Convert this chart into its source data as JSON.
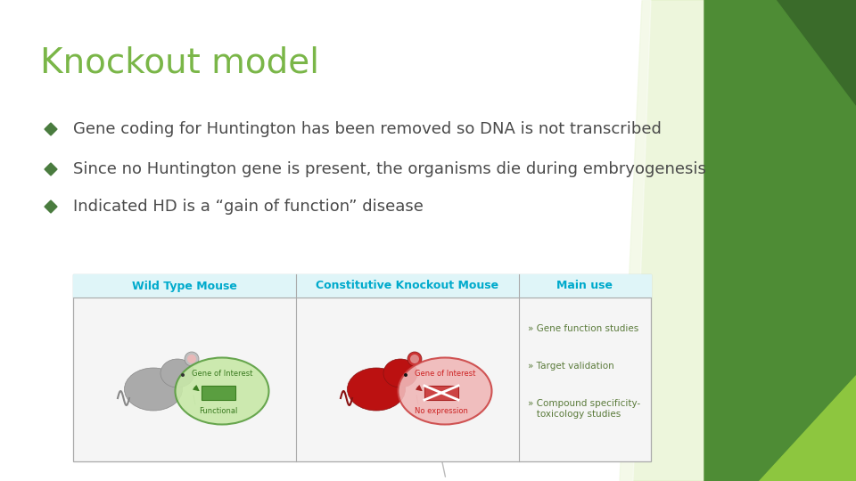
{
  "title": "Knockout model",
  "title_color": "#7ab648",
  "title_fontsize": 28,
  "bg_color": "#ffffff",
  "bullet_color": "#4a4a4a",
  "bullet_marker_color": "#4a7c3f",
  "bullets": [
    "Gene coding for Huntington has been removed so DNA is not transcribed",
    "Since no Huntington gene is present, the organisms die during embryogenesis",
    "Indicated HD is a “gain of function” disease"
  ],
  "bullet_fontsize": 13,
  "deco_dark_green": "#3a6b2a",
  "deco_mid_green": "#4e8c35",
  "deco_light_green": "#8dc63f",
  "deco_pale_green": "#c8e6a0",
  "deco_very_pale_green": "#dff0c0",
  "col1_header": "Wild Type Mouse",
  "col2_header": "Constitutive Knockout Mouse",
  "col3_header": "Main use",
  "col_header_color": "#00aacc",
  "main_use_items": [
    "» Gene function studies",
    "» Target validation",
    "» Compound specificity-\n   toxicology studies"
  ],
  "main_use_color": "#5a7a3a"
}
